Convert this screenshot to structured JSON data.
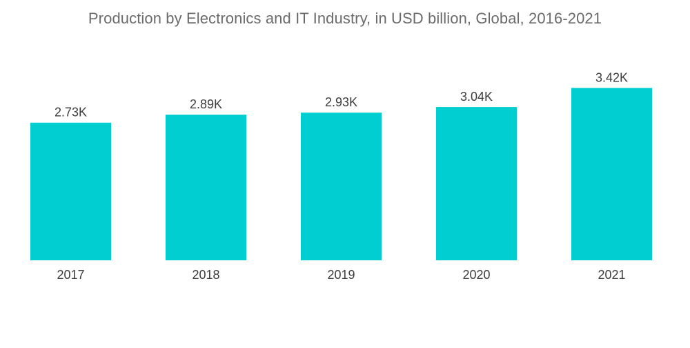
{
  "chart_data": {
    "type": "bar",
    "title": "Production by Electronics and IT Industry, in USD billion, Global, 2016-2021",
    "categories": [
      "2017",
      "2018",
      "2019",
      "2020",
      "2021"
    ],
    "values": [
      2730,
      2890,
      2930,
      3040,
      3420
    ],
    "data_labels": [
      "2.73K",
      "2.89K",
      "2.93K",
      "3.04K",
      "3.42K"
    ],
    "xlabel": "",
    "ylabel": "",
    "ylim": [
      0,
      4000
    ],
    "grid": false,
    "legend": "none",
    "bar_color": "#00CED1"
  }
}
